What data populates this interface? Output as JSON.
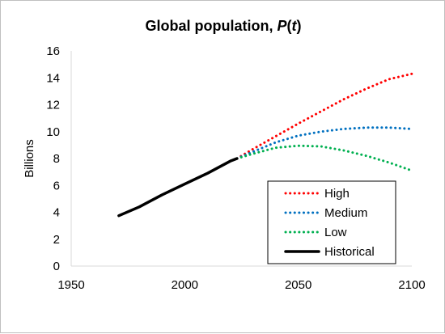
{
  "chart_data": {
    "type": "line",
    "title_main": "Global population, ",
    "title_var": "P",
    "title_open": "(",
    "title_arg": "t",
    "title_close": ")",
    "ylabel": "Billions",
    "xlabel": "",
    "xlim": [
      1950,
      2100
    ],
    "ylim": [
      0,
      16
    ],
    "x_ticks": [
      "1950",
      "2000",
      "2050",
      "2100"
    ],
    "y_ticks": [
      "0",
      "2",
      "4",
      "6",
      "8",
      "10",
      "12",
      "14",
      "16"
    ],
    "grid": false,
    "legend_position": "bottom-right",
    "series": [
      {
        "name": "High",
        "color": "#ff0000",
        "style": "dotted",
        "points": [
          [
            2023,
            8.0
          ],
          [
            2030,
            8.7
          ],
          [
            2040,
            9.65
          ],
          [
            2050,
            10.6
          ],
          [
            2060,
            11.5
          ],
          [
            2070,
            12.4
          ],
          [
            2080,
            13.2
          ],
          [
            2090,
            13.9
          ],
          [
            2100,
            14.3
          ]
        ]
      },
      {
        "name": "Medium",
        "color": "#0070c0",
        "style": "dotted",
        "points": [
          [
            2023,
            8.0
          ],
          [
            2030,
            8.5
          ],
          [
            2040,
            9.2
          ],
          [
            2050,
            9.7
          ],
          [
            2060,
            10.0
          ],
          [
            2070,
            10.2
          ],
          [
            2080,
            10.3
          ],
          [
            2090,
            10.3
          ],
          [
            2100,
            10.2
          ]
        ]
      },
      {
        "name": "Low",
        "color": "#00b050",
        "style": "dotted",
        "points": [
          [
            2023,
            8.0
          ],
          [
            2030,
            8.35
          ],
          [
            2040,
            8.8
          ],
          [
            2050,
            8.95
          ],
          [
            2060,
            8.9
          ],
          [
            2070,
            8.6
          ],
          [
            2080,
            8.2
          ],
          [
            2090,
            7.7
          ],
          [
            2100,
            7.1
          ]
        ]
      },
      {
        "name": "Historical",
        "color": "#000000",
        "style": "solid",
        "points": [
          [
            1971,
            3.75
          ],
          [
            1980,
            4.4
          ],
          [
            1990,
            5.3
          ],
          [
            2000,
            6.1
          ],
          [
            2010,
            6.9
          ],
          [
            2020,
            7.8
          ],
          [
            2023,
            8.0
          ]
        ]
      }
    ]
  }
}
